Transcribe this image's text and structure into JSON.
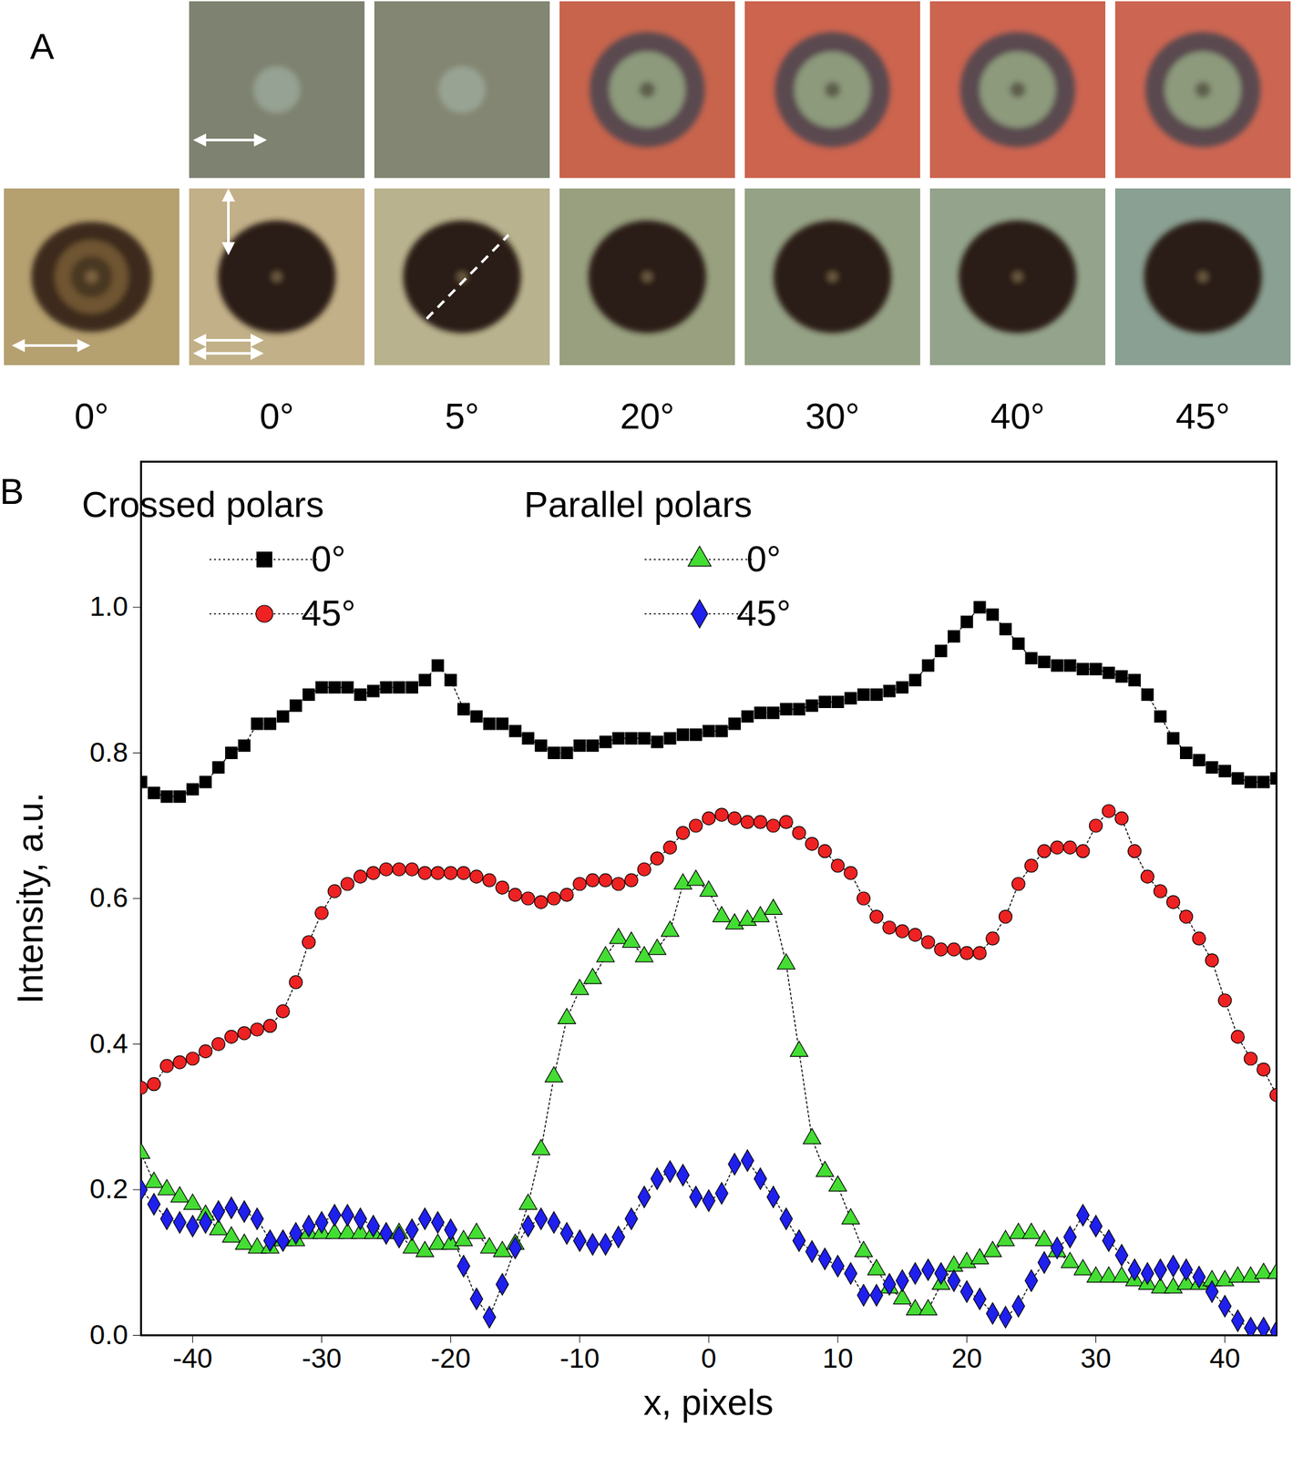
{
  "panel_a": {
    "letter": "A",
    "angles": [
      "0°",
      "0°",
      "5°",
      "20°",
      "30°",
      "40°",
      "45°"
    ]
  },
  "chart_data": {
    "type": "line",
    "panel": "B",
    "x_label": "x, pixels",
    "y_label": "Intensity, a.u.",
    "xlim": [
      -44,
      44
    ],
    "ylim": [
      0,
      1.2
    ],
    "xticks": [
      -40,
      -30,
      -20,
      -10,
      0,
      10,
      20,
      30,
      40
    ],
    "yticks": [
      {
        "value": 0,
        "label": "0.0"
      },
      0.2,
      0.4,
      0.6,
      0.8,
      {
        "value": 1,
        "label": "1.0"
      }
    ],
    "legend": "top-left",
    "x": [
      -44,
      -43,
      -42,
      -41,
      -40,
      -39,
      -38,
      -37,
      -36,
      -35,
      -34,
      -33,
      -32,
      -31,
      -30,
      -29,
      -28,
      -27,
      -26,
      -25,
      -24,
      -23,
      -22,
      -21,
      -20,
      -19,
      -18,
      -17,
      -16,
      -15,
      -14,
      -13,
      -12,
      -11,
      -10,
      -9,
      -8,
      -7,
      -6,
      -5,
      -4,
      -3,
      -2,
      -1,
      0,
      1,
      2,
      3,
      4,
      5,
      6,
      7,
      8,
      9,
      10,
      11,
      12,
      13,
      14,
      15,
      16,
      17,
      18,
      19,
      20,
      21,
      22,
      23,
      24,
      25,
      26,
      27,
      28,
      29,
      30,
      31,
      32,
      33,
      34,
      35,
      36,
      37,
      38,
      39,
      40,
      41,
      42,
      43,
      44
    ],
    "series": [
      {
        "name": "0°",
        "group": "Crossed polars",
        "color": "#000000",
        "marker": "square",
        "line_style": "dotted",
        "values": [
          0.76,
          0.745,
          0.74,
          0.74,
          0.75,
          0.76,
          0.78,
          0.8,
          0.81,
          0.84,
          0.84,
          0.85,
          0.865,
          0.88,
          0.89,
          0.89,
          0.89,
          0.88,
          0.885,
          0.89,
          0.89,
          0.89,
          0.9,
          0.92,
          0.9,
          0.86,
          0.85,
          0.84,
          0.84,
          0.83,
          0.82,
          0.81,
          0.8,
          0.8,
          0.81,
          0.81,
          0.815,
          0.82,
          0.82,
          0.82,
          0.815,
          0.82,
          0.825,
          0.825,
          0.83,
          0.83,
          0.84,
          0.85,
          0.855,
          0.855,
          0.86,
          0.86,
          0.865,
          0.87,
          0.87,
          0.875,
          0.88,
          0.88,
          0.885,
          0.89,
          0.9,
          0.92,
          0.94,
          0.96,
          0.98,
          1.0,
          0.99,
          0.97,
          0.95,
          0.93,
          0.925,
          0.92,
          0.92,
          0.915,
          0.915,
          0.91,
          0.905,
          0.9,
          0.88,
          0.85,
          0.82,
          0.8,
          0.79,
          0.78,
          0.775,
          0.765,
          0.76,
          0.76,
          0.765
        ]
      },
      {
        "name": "45°",
        "group": "Crossed polars",
        "color": "#ee2222",
        "marker": "circle",
        "line_style": "dotted",
        "values": [
          0.34,
          0.345,
          0.37,
          0.375,
          0.38,
          0.39,
          0.4,
          0.41,
          0.415,
          0.42,
          0.425,
          0.445,
          0.485,
          0.54,
          0.58,
          0.61,
          0.62,
          0.63,
          0.635,
          0.64,
          0.64,
          0.64,
          0.635,
          0.635,
          0.635,
          0.635,
          0.63,
          0.625,
          0.615,
          0.605,
          0.6,
          0.595,
          0.6,
          0.605,
          0.62,
          0.625,
          0.625,
          0.62,
          0.625,
          0.64,
          0.655,
          0.67,
          0.69,
          0.7,
          0.71,
          0.715,
          0.71,
          0.705,
          0.705,
          0.7,
          0.705,
          0.69,
          0.675,
          0.665,
          0.645,
          0.635,
          0.6,
          0.575,
          0.56,
          0.555,
          0.55,
          0.54,
          0.53,
          0.53,
          0.525,
          0.525,
          0.545,
          0.575,
          0.62,
          0.645,
          0.665,
          0.67,
          0.67,
          0.665,
          0.7,
          0.72,
          0.71,
          0.665,
          0.63,
          0.61,
          0.595,
          0.575,
          0.545,
          0.515,
          0.46,
          0.41,
          0.38,
          0.365,
          0.33
        ]
      },
      {
        "name": "0°",
        "group": "Parallel polars",
        "color": "#44dd33",
        "marker": "triangle",
        "line_style": "dotted",
        "values": [
          0.25,
          0.21,
          0.2,
          0.19,
          0.18,
          0.165,
          0.145,
          0.135,
          0.125,
          0.12,
          0.12,
          0.13,
          0.13,
          0.14,
          0.14,
          0.14,
          0.14,
          0.14,
          0.14,
          0.14,
          0.14,
          0.12,
          0.115,
          0.125,
          0.125,
          0.13,
          0.14,
          0.12,
          0.115,
          0.125,
          0.18,
          0.255,
          0.355,
          0.435,
          0.475,
          0.49,
          0.52,
          0.545,
          0.54,
          0.52,
          0.53,
          0.555,
          0.62,
          0.625,
          0.61,
          0.575,
          0.565,
          0.57,
          0.575,
          0.585,
          0.51,
          0.39,
          0.27,
          0.225,
          0.205,
          0.16,
          0.115,
          0.09,
          0.065,
          0.05,
          0.035,
          0.035,
          0.07,
          0.095,
          0.1,
          0.105,
          0.115,
          0.13,
          0.14,
          0.14,
          0.13,
          0.115,
          0.1,
          0.09,
          0.08,
          0.08,
          0.08,
          0.075,
          0.07,
          0.065,
          0.065,
          0.07,
          0.07,
          0.075,
          0.075,
          0.08,
          0.08,
          0.085,
          0.085
        ]
      },
      {
        "name": "45°",
        "group": "Parallel polars",
        "color": "#1f1fee",
        "marker": "diamond",
        "line_style": "dotted",
        "values": [
          0.2,
          0.18,
          0.16,
          0.155,
          0.15,
          0.155,
          0.17,
          0.175,
          0.17,
          0.16,
          0.13,
          0.13,
          0.14,
          0.15,
          0.155,
          0.165,
          0.165,
          0.16,
          0.15,
          0.14,
          0.135,
          0.145,
          0.16,
          0.155,
          0.145,
          0.095,
          0.05,
          0.025,
          0.07,
          0.12,
          0.15,
          0.16,
          0.155,
          0.14,
          0.13,
          0.125,
          0.125,
          0.135,
          0.16,
          0.19,
          0.215,
          0.225,
          0.22,
          0.19,
          0.185,
          0.195,
          0.235,
          0.24,
          0.215,
          0.19,
          0.16,
          0.13,
          0.115,
          0.105,
          0.095,
          0.085,
          0.055,
          0.055,
          0.07,
          0.075,
          0.085,
          0.09,
          0.085,
          0.075,
          0.06,
          0.05,
          0.03,
          0.025,
          0.04,
          0.075,
          0.1,
          0.12,
          0.135,
          0.165,
          0.15,
          0.13,
          0.11,
          0.09,
          0.085,
          0.09,
          0.095,
          0.09,
          0.08,
          0.06,
          0.04,
          0.02,
          0.01,
          0.01,
          0.005
        ]
      }
    ]
  }
}
